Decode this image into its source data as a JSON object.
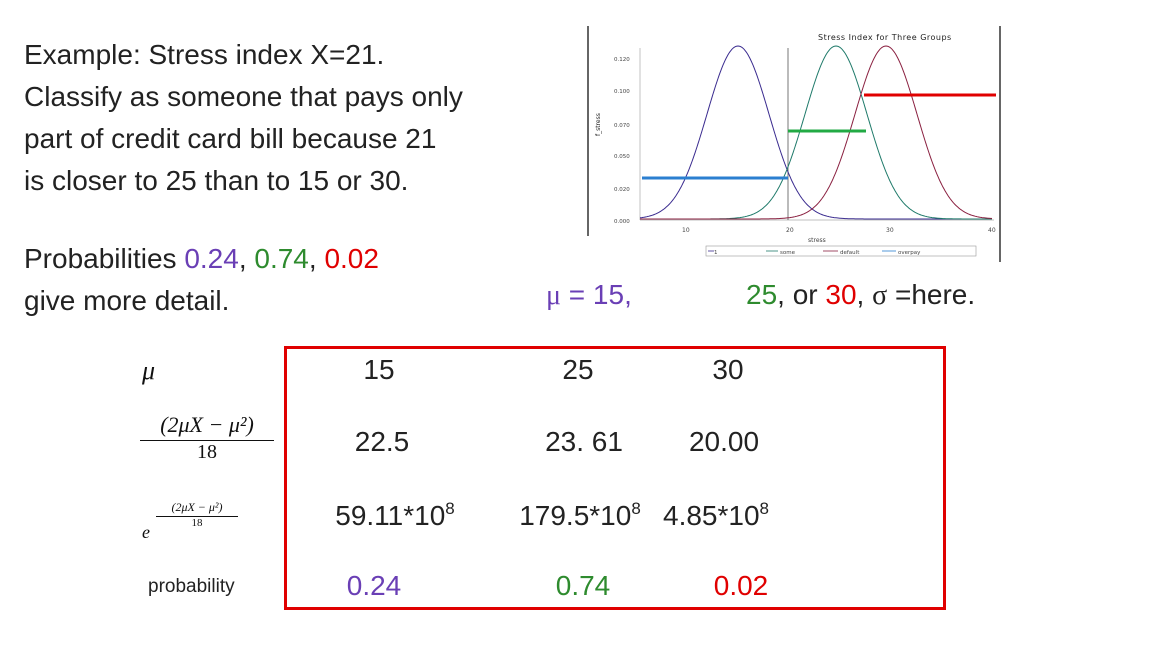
{
  "text": {
    "para1": [
      "Example: Stress index X=21.",
      "Classify as someone that pays only",
      "part of credit card bill because 21",
      "is closer to 25 than to 15 or 30."
    ],
    "para2_prefix": "Probabilities ",
    "p1": "0.24",
    "sep1": ", ",
    "p2": "0.74",
    "sep2": ", ",
    "p3": "0.02",
    "para2_line2": "give more detail.",
    "mu_symbol": "μ",
    "mu_eq": " = 15,",
    "mu_25": "25",
    "mu_or": ", or ",
    "mu_30": "30",
    "mu_sep": ", ",
    "sigma": "σ",
    "sigma_eq": " =here."
  },
  "chart": {
    "title": "Stress Index for Three Groups",
    "yticks": [
      "0.120",
      "0.100",
      "0.070",
      "0.050",
      "0.020",
      "0.000"
    ],
    "xticks": [
      "10",
      "20",
      "30",
      "40"
    ],
    "ylabel": "f_stress",
    "xlabel": "stress",
    "legend": [
      "1",
      "some",
      "default",
      "overpay"
    ],
    "colors": {
      "purple": "#3a2b8f",
      "teal": "#1f7a6a",
      "maroon": "#8a2040",
      "blue": "#2b7fd0",
      "green": "#22aa44",
      "red": "#e00000"
    }
  },
  "table": {
    "row_labels": {
      "mu": "μ",
      "frac_num": "(2μX − μ²)",
      "frac_den": "18",
      "exp_base": "e",
      "exp_num": "(2μX − μ²)",
      "exp_den": "18",
      "prob": "probability"
    },
    "rows": [
      [
        "15",
        "25",
        "30"
      ],
      [
        "22.5",
        "23. 61",
        "20.00"
      ],
      [
        {
          "base": "59.11*10",
          "exp": "8"
        },
        {
          "base": "179.5*10",
          "exp": "8"
        },
        {
          "base": "4.85*10",
          "exp": "8"
        }
      ],
      [
        "0.24",
        "0.74",
        "0.02"
      ]
    ]
  }
}
